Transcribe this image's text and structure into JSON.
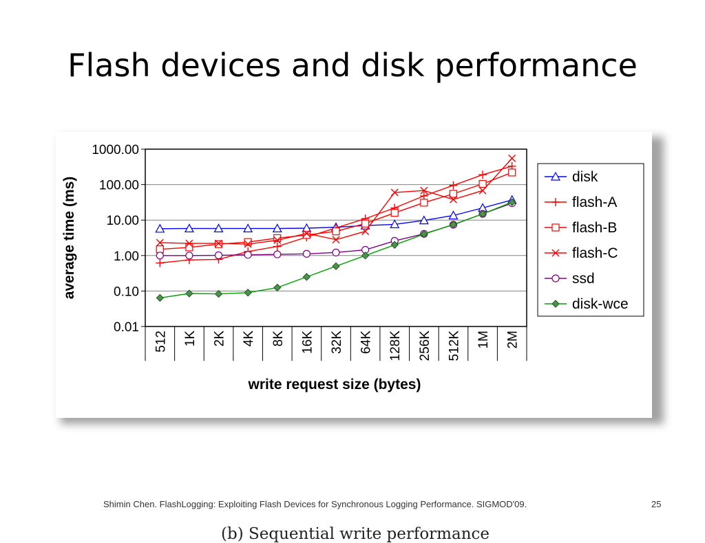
{
  "slide": {
    "title": "Flash devices and disk performance",
    "caption": "(b) Sequential write performance",
    "footer": "Shimin Chen. FlashLogging: Exploiting Flash Devices for Synchronous Logging Performance. SIGMOD'09.",
    "page_number": "25"
  },
  "chart_data": {
    "type": "line",
    "title": "",
    "xlabel": "write request size (bytes)",
    "ylabel": "average time (ms)",
    "yscale": "log",
    "ylim": [
      0.01,
      1000
    ],
    "ytick_values": [
      0.01,
      0.1,
      1,
      10,
      100,
      1000
    ],
    "ytick_labels": [
      "0.01",
      "0.10",
      "1.00",
      "10.00",
      "100.00",
      "1000.00"
    ],
    "categories": [
      "512",
      "1K",
      "2K",
      "4K",
      "8K",
      "16K",
      "32K",
      "64K",
      "128K",
      "256K",
      "512K",
      "1M",
      "2M"
    ],
    "grid": "horizontal",
    "legend_position": "right",
    "series": [
      {
        "name": "disk",
        "color": "#0000ff",
        "marker": "triangle",
        "values": [
          5.7,
          5.8,
          5.8,
          5.8,
          5.8,
          5.9,
          6.3,
          7.0,
          7.6,
          9.8,
          13.5,
          22,
          37
        ]
      },
      {
        "name": "flash-A",
        "color": "#ff0000",
        "marker": "plus",
        "values": [
          0.62,
          0.75,
          0.78,
          1.3,
          1.8,
          3.3,
          6.0,
          11,
          22,
          48,
          95,
          190,
          330
        ]
      },
      {
        "name": "flash-B",
        "color": "#ff0000",
        "marker": "square",
        "values": [
          1.5,
          1.7,
          2.1,
          2.4,
          3.1,
          3.8,
          4.8,
          8.0,
          16,
          31,
          55,
          105,
          220
        ]
      },
      {
        "name": "flash-C",
        "color": "#ff0000",
        "marker": "x",
        "values": [
          2.3,
          2.2,
          2.2,
          2.1,
          2.7,
          4.2,
          2.8,
          4.8,
          60,
          68,
          38,
          68,
          550
        ]
      },
      {
        "name": "ssd",
        "color": "#800080",
        "marker": "circle",
        "values": [
          1.0,
          1.0,
          1.02,
          1.05,
          1.08,
          1.12,
          1.22,
          1.45,
          2.6,
          4.1,
          7.4,
          15,
          30
        ]
      },
      {
        "name": "disk-wce",
        "color": "#00a000",
        "marker": "diamond",
        "values": [
          0.064,
          0.085,
          0.083,
          0.09,
          0.125,
          0.25,
          0.5,
          1.0,
          2.0,
          4.0,
          7.5,
          15,
          32
        ]
      }
    ]
  }
}
